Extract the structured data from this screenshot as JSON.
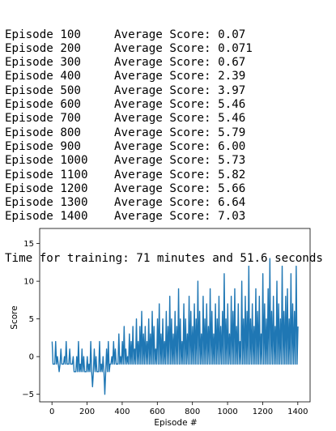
{
  "log": {
    "lines": [
      {
        "episode": "Episode 100",
        "score": "Average Score: 0.07"
      },
      {
        "episode": "Episode 200",
        "score": "Average Score: 0.071"
      },
      {
        "episode": "Episode 300",
        "score": "Average Score: 0.67"
      },
      {
        "episode": "Episode 400",
        "score": "Average Score: 2.39"
      },
      {
        "episode": "Episode 500",
        "score": "Average Score: 3.97"
      },
      {
        "episode": "Episode 600",
        "score": "Average Score: 5.46"
      },
      {
        "episode": "Episode 700",
        "score": "Average Score: 5.46"
      },
      {
        "episode": "Episode 800",
        "score": "Average Score: 5.79"
      },
      {
        "episode": "Episode 900",
        "score": "Average Score: 6.00"
      },
      {
        "episode": "Episode 1000",
        "score": "Average Score: 5.73"
      },
      {
        "episode": "Episode 1100",
        "score": "Average Score: 5.82"
      },
      {
        "episode": "Episode 1200",
        "score": "Average Score: 5.66"
      },
      {
        "episode": "Episode 1300",
        "score": "Average Score: 6.64"
      },
      {
        "episode": "Episode 1400",
        "score": "Average Score: 7.03"
      }
    ],
    "footer": "Time for training: 71 minutes and 51.6 seconds"
  },
  "chart_data": {
    "type": "line",
    "xlabel": "Episode #",
    "ylabel": "Score",
    "xlim": [
      -70,
      1470
    ],
    "ylim": [
      -6,
      17
    ],
    "xticks": [
      0,
      200,
      400,
      600,
      800,
      1000,
      1200,
      1400
    ],
    "yticks": [
      -5,
      0,
      5,
      10,
      15
    ],
    "grid": false,
    "line_color": "#1f77b4",
    "series": [
      {
        "x_start": 1,
        "x_step": 10,
        "envelope_min": [
          -1,
          -1,
          -1,
          -1,
          -1,
          -1,
          -1,
          -1,
          -1,
          -1,
          -1,
          -1,
          -2,
          -2,
          -2,
          -2,
          -2,
          -2,
          -2,
          -2,
          -2,
          -2,
          -2,
          -2,
          -2,
          -2,
          -2,
          -2,
          -2,
          -2,
          -2,
          -2,
          -2,
          -1,
          -1,
          -1,
          -1,
          -1,
          -1,
          -1,
          -1,
          -1,
          -1,
          -1,
          -1,
          -1,
          -1,
          -1,
          -1,
          -1,
          -1,
          -1,
          -1,
          -1,
          -1,
          -1,
          -1,
          -1,
          -1,
          -1,
          -1,
          -1,
          -1,
          -1,
          -1,
          -1,
          -1,
          -1,
          -1,
          -1,
          -1,
          -1,
          -1,
          -1,
          -1,
          -1,
          -1,
          -1,
          -1,
          -1,
          -1,
          -1,
          -1,
          -1,
          -1,
          -1,
          -1,
          -1,
          -1,
          -1,
          -1,
          -1,
          -1,
          -1,
          -1,
          -1,
          -1,
          -1,
          -1,
          -1,
          -1,
          -1,
          -1,
          -1,
          -1,
          -1,
          -1,
          -1,
          -1,
          -1,
          -1,
          -1,
          -1,
          -1,
          -1,
          -1,
          -1,
          -1,
          -1,
          -1,
          -1,
          -1,
          -1,
          -1,
          -1,
          -1,
          -1,
          -1,
          -1,
          -1,
          -1,
          -1,
          -1,
          -1,
          -1,
          -1,
          -1,
          -1,
          -1,
          -1
        ],
        "values": [
          2,
          -1,
          2,
          0,
          -2,
          1,
          -1,
          0,
          2,
          -1,
          1,
          -1,
          0,
          -2,
          0,
          2,
          -1,
          1,
          0,
          -2,
          0,
          -1,
          2,
          -4,
          1,
          0,
          -2,
          2,
          -1,
          0,
          -5,
          1,
          2,
          -1,
          0,
          2,
          1,
          -1,
          3,
          0,
          2,
          4,
          1,
          0,
          3,
          2,
          4,
          1,
          5,
          2,
          4,
          6,
          3,
          4,
          2,
          5,
          3,
          6,
          4,
          1,
          5,
          7,
          3,
          5,
          2,
          6,
          4,
          8,
          5,
          3,
          6,
          4,
          9,
          5,
          2,
          7,
          5,
          3,
          8,
          6,
          4,
          7,
          5,
          10,
          6,
          3,
          8,
          5,
          7,
          4,
          9,
          6,
          3,
          7,
          5,
          8,
          4,
          6,
          11,
          5,
          7,
          3,
          8,
          6,
          9,
          4,
          7,
          2,
          10,
          5,
          8,
          6,
          12,
          5,
          7,
          4,
          9,
          6,
          8,
          3,
          11,
          7,
          5,
          9,
          13,
          6,
          8,
          4,
          10,
          7,
          5,
          12,
          6,
          8,
          9,
          5,
          11,
          7,
          6,
          12,
          4,
          9
        ]
      }
    ]
  }
}
